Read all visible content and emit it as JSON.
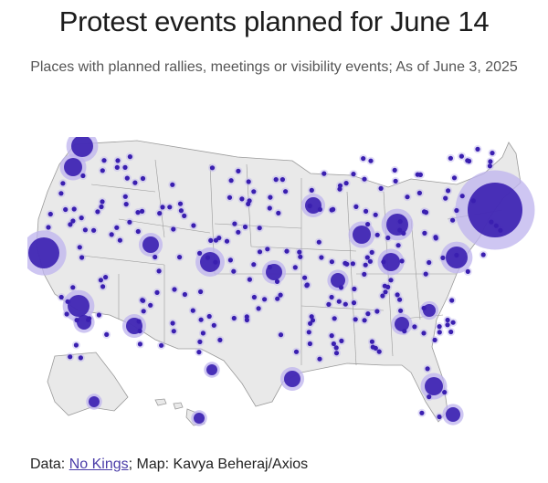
{
  "title": "Protest events planned for June 14",
  "subtitle": "Places with planned rallies, meetings or visibility events; As of June 3, 2025",
  "footer": {
    "prefix": "Data: ",
    "source_link": "No Kings",
    "suffix": "; Map: Kavya Beheraj/Axios"
  },
  "map": {
    "region": "United States",
    "dot_color": "#3a1fb0",
    "halo_color": "#bdb3ee",
    "land_color": "#e9e9e9",
    "border_color": "#9a9a9a"
  }
}
